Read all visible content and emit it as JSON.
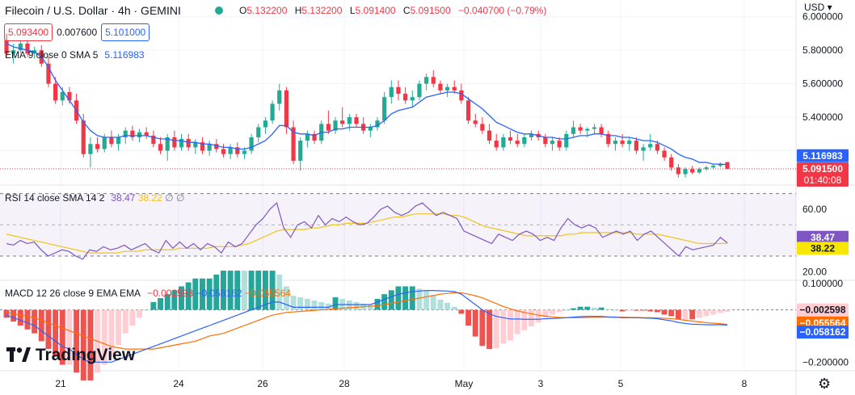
{
  "header": {
    "title": "Filecoin / U.S. Dollar · 4h · GEMINI",
    "ohlc": [
      {
        "k": "O",
        "v": "5.132200"
      },
      {
        "k": "H",
        "v": "5.132200"
      },
      {
        "k": "L",
        "v": "5.091400"
      },
      {
        "k": "C",
        "v": "5.091500"
      }
    ],
    "change": "−0.040700 (−0.79%)",
    "sell_price": "5.093400",
    "spread": "0.007600",
    "buy_price": "5.101000",
    "currency": "USD"
  },
  "indicators": {
    "ema": {
      "label": "EMA 9 close 0 SMA 5",
      "value": "5.116983"
    },
    "rsi": {
      "label": "RSI 14 close SMA 14 2",
      "value1": "38.47",
      "value2": "38.22",
      "extra": "∅ ∅"
    },
    "macd": {
      "label": "MACD 12 26 close 9 EMA EMA",
      "hist": "−0.002598",
      "macd": "−0.058162",
      "signal": "−0.055564"
    }
  },
  "branding": {
    "logo": "TradingView"
  },
  "colors": {
    "up": "#22ab94",
    "down": "#f23645",
    "ema": "#2962ff",
    "rsi": "#7e57c2",
    "rsi_ma": "#f0c419",
    "macd": "#2962ff",
    "signal": "#ff6d00",
    "hist_up": "#26a69a",
    "hist_down": "#ef5350"
  },
  "chart_data": {
    "type": "candlestick",
    "price_axis_ticks": [
      "6.000000",
      "5.800000",
      "5.600000",
      "5.400000"
    ],
    "price_range": [
      5.0,
      6.1
    ],
    "current_price_label": "5.091500",
    "countdown": "01:40:08",
    "ema_label_value": "5.116983",
    "x_ticks": [
      "21",
      "24",
      "26",
      "28",
      "May",
      "3",
      "5",
      "8"
    ],
    "candles_ohlc": [
      [
        5.86,
        5.9,
        5.76,
        5.78
      ],
      [
        5.78,
        5.84,
        5.72,
        5.8
      ],
      [
        5.8,
        5.86,
        5.78,
        5.84
      ],
      [
        5.84,
        5.86,
        5.76,
        5.78
      ],
      [
        5.78,
        5.82,
        5.75,
        5.8
      ],
      [
        5.8,
        5.83,
        5.7,
        5.72
      ],
      [
        5.72,
        5.76,
        5.58,
        5.6
      ],
      [
        5.6,
        5.64,
        5.48,
        5.5
      ],
      [
        5.5,
        5.58,
        5.47,
        5.55
      ],
      [
        5.55,
        5.58,
        5.48,
        5.5
      ],
      [
        5.5,
        5.54,
        5.36,
        5.38
      ],
      [
        5.38,
        5.42,
        5.16,
        5.18
      ],
      [
        5.18,
        5.28,
        5.1,
        5.24
      ],
      [
        5.24,
        5.28,
        5.19,
        5.21
      ],
      [
        5.21,
        5.3,
        5.19,
        5.28
      ],
      [
        5.28,
        5.32,
        5.22,
        5.24
      ],
      [
        5.24,
        5.3,
        5.2,
        5.28
      ],
      [
        5.28,
        5.34,
        5.24,
        5.32
      ],
      [
        5.32,
        5.35,
        5.26,
        5.28
      ],
      [
        5.28,
        5.33,
        5.25,
        5.31
      ],
      [
        5.31,
        5.34,
        5.27,
        5.29
      ],
      [
        5.29,
        5.32,
        5.22,
        5.24
      ],
      [
        5.24,
        5.28,
        5.18,
        5.2
      ],
      [
        5.2,
        5.3,
        5.14,
        5.28
      ],
      [
        5.28,
        5.32,
        5.2,
        5.22
      ],
      [
        5.22,
        5.3,
        5.2,
        5.27
      ],
      [
        5.27,
        5.3,
        5.2,
        5.22
      ],
      [
        5.22,
        5.27,
        5.18,
        5.25
      ],
      [
        5.25,
        5.28,
        5.18,
        5.2
      ],
      [
        5.2,
        5.26,
        5.17,
        5.24
      ],
      [
        5.24,
        5.27,
        5.19,
        5.21
      ],
      [
        5.21,
        5.24,
        5.16,
        5.18
      ],
      [
        5.18,
        5.24,
        5.15,
        5.22
      ],
      [
        5.22,
        5.25,
        5.16,
        5.18
      ],
      [
        5.18,
        5.22,
        5.15,
        5.2
      ],
      [
        5.2,
        5.3,
        5.18,
        5.28
      ],
      [
        5.28,
        5.36,
        5.25,
        5.34
      ],
      [
        5.34,
        5.4,
        5.3,
        5.38
      ],
      [
        5.38,
        5.5,
        5.36,
        5.48
      ],
      [
        5.48,
        5.6,
        5.44,
        5.56
      ],
      [
        5.56,
        5.58,
        5.3,
        5.34
      ],
      [
        5.34,
        5.38,
        5.12,
        5.14
      ],
      [
        5.14,
        5.28,
        5.08,
        5.26
      ],
      [
        5.26,
        5.32,
        5.22,
        5.3
      ],
      [
        5.3,
        5.32,
        5.24,
        5.26
      ],
      [
        5.26,
        5.38,
        5.24,
        5.36
      ],
      [
        5.36,
        5.44,
        5.3,
        5.32
      ],
      [
        5.32,
        5.4,
        5.3,
        5.38
      ],
      [
        5.38,
        5.46,
        5.34,
        5.36
      ],
      [
        5.36,
        5.42,
        5.32,
        5.4
      ],
      [
        5.4,
        5.42,
        5.34,
        5.36
      ],
      [
        5.36,
        5.4,
        5.3,
        5.32
      ],
      [
        5.32,
        5.36,
        5.28,
        5.34
      ],
      [
        5.34,
        5.4,
        5.32,
        5.38
      ],
      [
        5.38,
        5.55,
        5.36,
        5.52
      ],
      [
        5.52,
        5.62,
        5.48,
        5.58
      ],
      [
        5.58,
        5.62,
        5.5,
        5.54
      ],
      [
        5.54,
        5.58,
        5.48,
        5.5
      ],
      [
        5.5,
        5.56,
        5.46,
        5.52
      ],
      [
        5.52,
        5.62,
        5.5,
        5.6
      ],
      [
        5.6,
        5.66,
        5.56,
        5.64
      ],
      [
        5.64,
        5.68,
        5.58,
        5.6
      ],
      [
        5.6,
        5.62,
        5.54,
        5.56
      ],
      [
        5.56,
        5.6,
        5.52,
        5.58
      ],
      [
        5.58,
        5.62,
        5.54,
        5.56
      ],
      [
        5.56,
        5.6,
        5.48,
        5.5
      ],
      [
        5.5,
        5.52,
        5.36,
        5.38
      ],
      [
        5.38,
        5.42,
        5.34,
        5.36
      ],
      [
        5.36,
        5.4,
        5.3,
        5.32
      ],
      [
        5.32,
        5.36,
        5.24,
        5.26
      ],
      [
        5.26,
        5.3,
        5.2,
        5.22
      ],
      [
        5.22,
        5.3,
        5.2,
        5.28
      ],
      [
        5.28,
        5.32,
        5.24,
        5.26
      ],
      [
        5.26,
        5.3,
        5.22,
        5.24
      ],
      [
        5.24,
        5.3,
        5.22,
        5.28
      ],
      [
        5.28,
        5.32,
        5.26,
        5.3
      ],
      [
        5.3,
        5.32,
        5.26,
        5.28
      ],
      [
        5.28,
        5.3,
        5.22,
        5.24
      ],
      [
        5.24,
        5.28,
        5.2,
        5.26
      ],
      [
        5.26,
        5.28,
        5.2,
        5.22
      ],
      [
        5.22,
        5.32,
        5.2,
        5.3
      ],
      [
        5.3,
        5.38,
        5.28,
        5.34
      ],
      [
        5.34,
        5.36,
        5.3,
        5.32
      ],
      [
        5.32,
        5.34,
        5.28,
        5.33
      ],
      [
        5.33,
        5.36,
        5.3,
        5.34
      ],
      [
        5.34,
        5.36,
        5.28,
        5.3
      ],
      [
        5.3,
        5.32,
        5.22,
        5.24
      ],
      [
        5.24,
        5.28,
        5.2,
        5.26
      ],
      [
        5.26,
        5.3,
        5.22,
        5.24
      ],
      [
        5.24,
        5.28,
        5.2,
        5.26
      ],
      [
        5.26,
        5.28,
        5.18,
        5.2
      ],
      [
        5.2,
        5.24,
        5.14,
        5.22
      ],
      [
        5.22,
        5.3,
        5.2,
        5.24
      ],
      [
        5.24,
        5.26,
        5.18,
        5.2
      ],
      [
        5.2,
        5.22,
        5.14,
        5.16
      ],
      [
        5.16,
        5.18,
        5.08,
        5.1
      ],
      [
        5.1,
        5.12,
        5.04,
        5.06
      ],
      [
        5.06,
        5.1,
        5.04,
        5.09
      ],
      [
        5.09,
        5.11,
        5.06,
        5.07
      ],
      [
        5.07,
        5.1,
        5.06,
        5.09
      ],
      [
        5.09,
        5.11,
        5.08,
        5.1
      ],
      [
        5.1,
        5.12,
        5.09,
        5.11
      ],
      [
        5.11,
        5.13,
        5.1,
        5.12
      ],
      [
        5.132,
        5.132,
        5.0914,
        5.0915
      ]
    ],
    "ema_series": [
      5.84,
      5.82,
      5.81,
      5.8,
      5.79,
      5.76,
      5.7,
      5.62,
      5.56,
      5.5,
      5.44,
      5.37,
      5.32,
      5.29,
      5.28,
      5.28,
      5.28,
      5.29,
      5.29,
      5.29,
      5.29,
      5.28,
      5.27,
      5.27,
      5.26,
      5.26,
      5.25,
      5.25,
      5.24,
      5.24,
      5.23,
      5.22,
      5.22,
      5.21,
      5.21,
      5.22,
      5.24,
      5.26,
      5.3,
      5.35,
      5.35,
      5.31,
      5.3,
      5.3,
      5.29,
      5.31,
      5.31,
      5.33,
      5.33,
      5.34,
      5.34,
      5.34,
      5.34,
      5.35,
      5.38,
      5.42,
      5.44,
      5.45,
      5.46,
      5.49,
      5.52,
      5.53,
      5.54,
      5.55,
      5.55,
      5.54,
      5.51,
      5.48,
      5.45,
      5.41,
      5.37,
      5.35,
      5.33,
      5.31,
      5.3,
      5.3,
      5.29,
      5.28,
      5.28,
      5.27,
      5.27,
      5.28,
      5.29,
      5.29,
      5.3,
      5.3,
      5.29,
      5.29,
      5.28,
      5.28,
      5.27,
      5.26,
      5.26,
      5.25,
      5.23,
      5.21,
      5.18,
      5.16,
      5.15,
      5.13,
      5.13,
      5.12,
      5.12,
      5.117
    ]
  },
  "rsi_data": {
    "axis_ticks": [
      "60.00",
      "20.00"
    ],
    "range": [
      15,
      75
    ],
    "upper_band": 70,
    "mid_band": 50,
    "lower_band": 30,
    "rsi_label": "38.47",
    "ma_label": "38.22",
    "rsi": [
      38,
      37,
      40,
      38,
      39,
      34,
      30,
      32,
      34,
      33,
      30,
      28,
      34,
      33,
      36,
      34,
      35,
      37,
      34,
      36,
      38,
      34,
      32,
      40,
      35,
      39,
      35,
      38,
      34,
      38,
      36,
      32,
      39,
      36,
      38,
      44,
      50,
      54,
      60,
      64,
      48,
      42,
      50,
      52,
      48,
      56,
      50,
      54,
      52,
      55,
      52,
      50,
      51,
      55,
      60,
      62,
      58,
      56,
      58,
      62,
      64,
      60,
      56,
      58,
      56,
      54,
      46,
      44,
      42,
      40,
      38,
      44,
      42,
      40,
      44,
      46,
      44,
      40,
      42,
      40,
      48,
      54,
      50,
      48,
      50,
      48,
      42,
      44,
      46,
      44,
      46,
      40,
      44,
      46,
      42,
      38,
      34,
      30,
      36,
      34,
      35,
      36,
      37,
      42,
      38.47
    ],
    "rsi_ma": [
      44,
      43,
      42,
      41,
      40,
      39,
      38,
      37,
      36,
      35,
      34,
      33,
      32,
      32,
      32,
      32,
      32,
      33,
      33,
      33,
      34,
      34,
      34,
      34,
      34,
      35,
      35,
      35,
      35,
      35,
      36,
      36,
      36,
      36,
      37,
      38,
      40,
      42,
      44,
      46,
      47,
      47,
      47,
      47,
      48,
      48,
      49,
      50,
      50,
      51,
      51,
      51,
      51,
      52,
      53,
      54,
      55,
      55,
      56,
      57,
      57,
      57,
      57,
      57,
      56,
      56,
      55,
      53,
      51,
      49,
      48,
      47,
      46,
      45,
      44,
      43,
      43,
      43,
      43,
      43,
      43,
      44,
      44,
      45,
      45,
      45,
      45,
      45,
      45,
      45,
      45,
      44,
      44,
      44,
      44,
      43,
      42,
      41,
      40,
      39,
      38,
      38,
      38,
      38,
      38.22
    ]
  },
  "macd_data": {
    "axis_ticks": [
      "0.100000",
      "−0.200000"
    ],
    "range": [
      -0.23,
      0.11
    ],
    "hist_label": "−0.002598",
    "signal_label": "−0.055564",
    "macd_label": "−0.058162",
    "macd": [
      -0.02,
      -0.03,
      -0.04,
      -0.05,
      -0.06,
      -0.08,
      -0.1,
      -0.12,
      -0.14,
      -0.15,
      -0.17,
      -0.19,
      -0.2,
      -0.2,
      -0.2,
      -0.2,
      -0.19,
      -0.18,
      -0.17,
      -0.16,
      -0.15,
      -0.14,
      -0.13,
      -0.12,
      -0.11,
      -0.1,
      -0.09,
      -0.08,
      -0.07,
      -0.06,
      -0.05,
      -0.04,
      -0.03,
      -0.02,
      -0.01,
      0.0,
      0.01,
      0.02,
      0.03,
      0.03,
      0.02,
      0.01,
      0.01,
      0.01,
      0.01,
      0.01,
      0.01,
      0.02,
      0.02,
      0.02,
      0.02,
      0.02,
      0.02,
      0.03,
      0.04,
      0.05,
      0.06,
      0.065,
      0.07,
      0.072,
      0.074,
      0.074,
      0.073,
      0.072,
      0.07,
      0.06,
      0.04,
      0.02,
      0.0,
      -0.015,
      -0.025,
      -0.03,
      -0.035,
      -0.035,
      -0.036,
      -0.036,
      -0.036,
      -0.034,
      -0.033,
      -0.032,
      -0.03,
      -0.028,
      -0.026,
      -0.025,
      -0.025,
      -0.025,
      -0.027,
      -0.028,
      -0.03,
      -0.03,
      -0.03,
      -0.031,
      -0.032,
      -0.034,
      -0.038,
      -0.042,
      -0.048,
      -0.052,
      -0.055,
      -0.056,
      -0.057,
      -0.057,
      -0.057,
      -0.058
    ],
    "signal": [
      -0.01,
      -0.015,
      -0.02,
      -0.025,
      -0.03,
      -0.04,
      -0.05,
      -0.06,
      -0.07,
      -0.08,
      -0.09,
      -0.1,
      -0.11,
      -0.12,
      -0.13,
      -0.14,
      -0.145,
      -0.15,
      -0.15,
      -0.15,
      -0.15,
      -0.15,
      -0.145,
      -0.14,
      -0.135,
      -0.13,
      -0.125,
      -0.12,
      -0.11,
      -0.1,
      -0.095,
      -0.09,
      -0.08,
      -0.07,
      -0.06,
      -0.05,
      -0.04,
      -0.03,
      -0.02,
      -0.015,
      -0.01,
      -0.008,
      -0.006,
      -0.004,
      -0.002,
      0.0,
      0.002,
      0.004,
      0.006,
      0.008,
      0.01,
      0.012,
      0.014,
      0.016,
      0.02,
      0.025,
      0.03,
      0.035,
      0.04,
      0.045,
      0.05,
      0.055,
      0.06,
      0.063,
      0.066,
      0.065,
      0.06,
      0.054,
      0.046,
      0.035,
      0.024,
      0.013,
      0.004,
      -0.004,
      -0.01,
      -0.015,
      -0.02,
      -0.024,
      -0.027,
      -0.029,
      -0.03,
      -0.03,
      -0.03,
      -0.029,
      -0.028,
      -0.028,
      -0.028,
      -0.028,
      -0.028,
      -0.029,
      -0.029,
      -0.03,
      -0.03,
      -0.031,
      -0.032,
      -0.034,
      -0.036,
      -0.04,
      -0.043,
      -0.046,
      -0.049,
      -0.051,
      -0.053,
      -0.0556
    ]
  }
}
